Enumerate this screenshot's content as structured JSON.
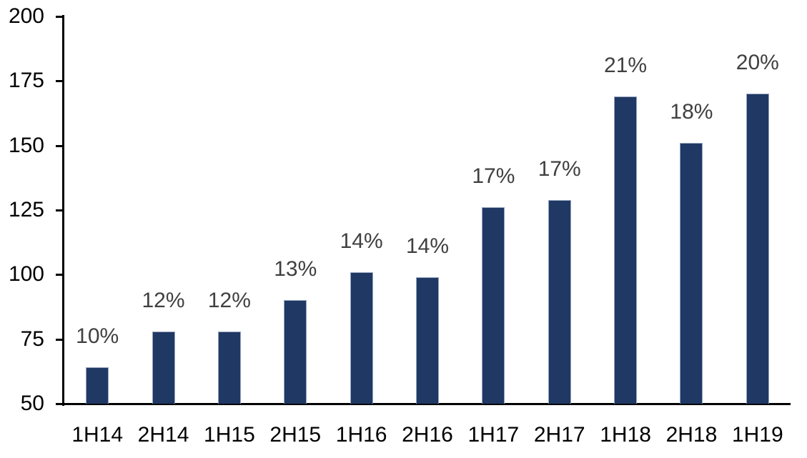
{
  "chart_data": {
    "type": "bar",
    "title": "",
    "xlabel": "",
    "ylabel": "",
    "categories": [
      "1H14",
      "2H14",
      "1H15",
      "2H15",
      "1H16",
      "2H16",
      "1H17",
      "2H17",
      "1H18",
      "2H18",
      "1H19"
    ],
    "series": [
      {
        "name": "value",
        "values": [
          64,
          78,
          78,
          90,
          101,
          99,
          126,
          129,
          169,
          151,
          170
        ]
      }
    ],
    "bar_labels": [
      "10%",
      "12%",
      "12%",
      "13%",
      "14%",
      "14%",
      "17%",
      "17%",
      "21%",
      "18%",
      "20%"
    ],
    "ylim": [
      50,
      200
    ],
    "yticks": [
      50,
      75,
      100,
      125,
      150,
      175,
      200
    ],
    "grid": false,
    "legend_position": "none",
    "colors": {
      "bar_fill": "#1F3864",
      "bar_border": "#96A5BE",
      "data_label": "#404040",
      "axis_text": "#000000",
      "axis_line": "#000000"
    }
  }
}
